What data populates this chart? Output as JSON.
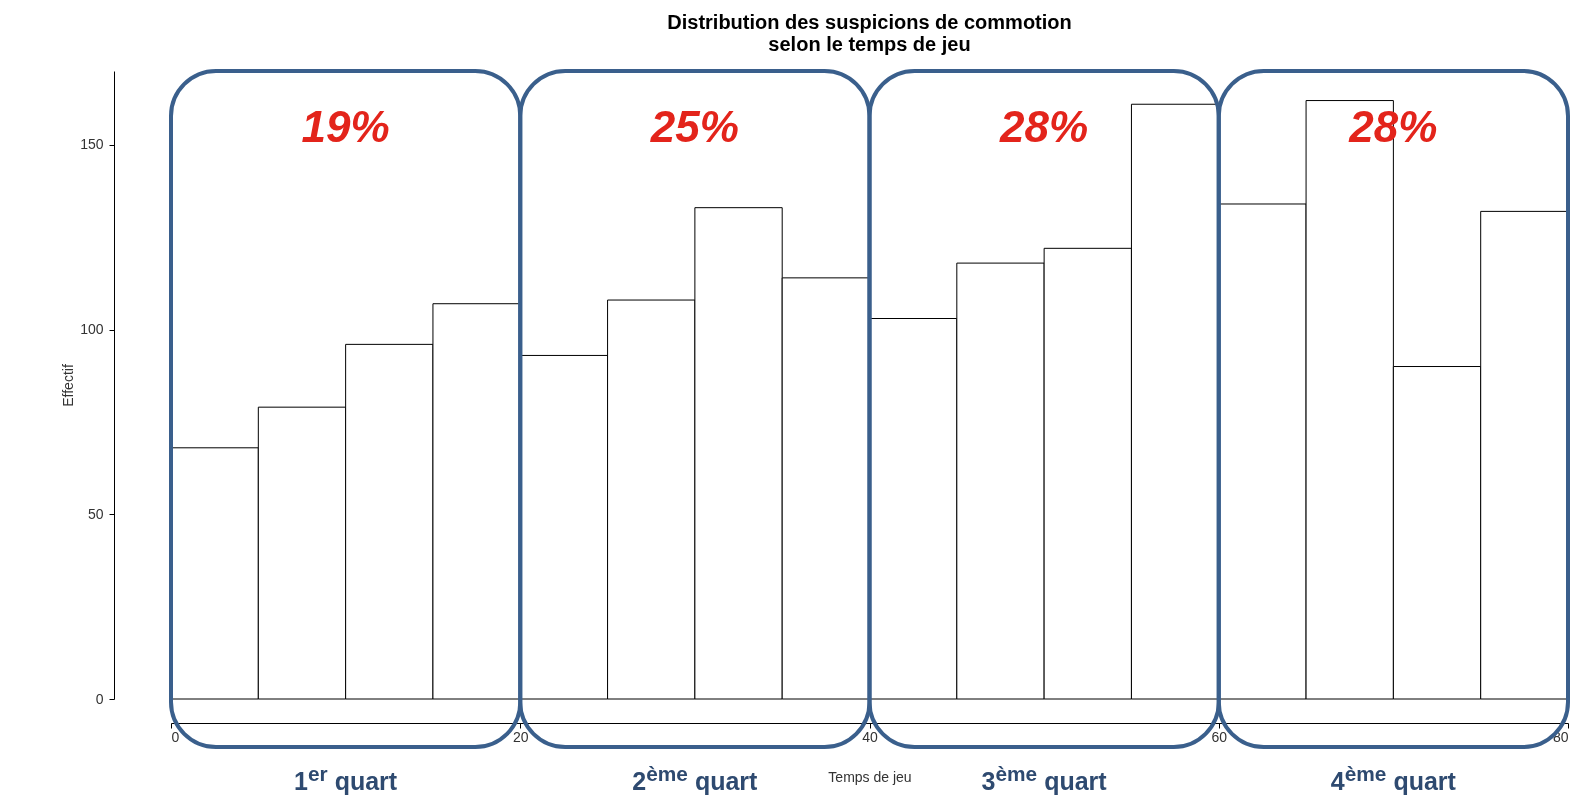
{
  "chart_data": {
    "type": "histogram",
    "title": "Distribution des suspicions de commotion\nselon le temps de jeu",
    "xlabel": "Temps de jeu",
    "ylabel": "Effectif",
    "bins": [
      0,
      5,
      10,
      15,
      20,
      25,
      30,
      35,
      40,
      45,
      50,
      55,
      60,
      65,
      70,
      75,
      80
    ],
    "values": [
      68,
      79,
      96,
      107,
      93,
      108,
      133,
      114,
      103,
      118,
      122,
      161,
      134,
      162,
      90,
      132
    ],
    "color": "#ffffff",
    "xlim": [
      0,
      80
    ],
    "xticks": [
      0,
      20,
      40,
      60,
      80
    ],
    "ylim": [
      0,
      170
    ],
    "yticks": [
      0,
      50,
      100,
      150
    ],
    "grid": false,
    "annotations": [
      "19%",
      "25%",
      "28%",
      "28%",
      "1$^{er}$ quart",
      "2$^{ème}$ quart",
      "3$^{ème}$ quart",
      "4$^{ème}$ quart"
    ]
  }
}
